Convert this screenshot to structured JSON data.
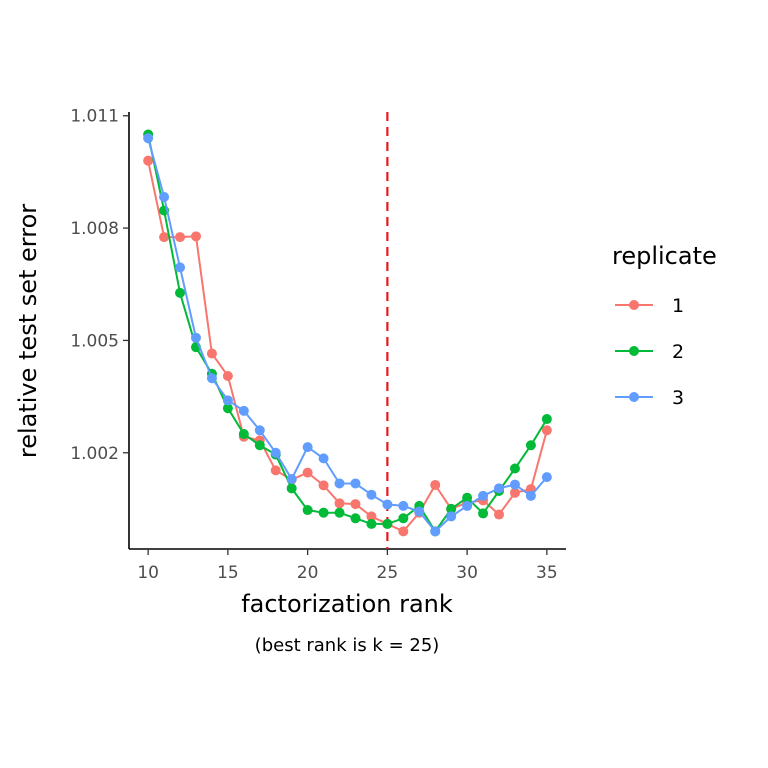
{
  "chart_data": {
    "type": "line",
    "title": "",
    "xlabel": "factorization rank",
    "ylabel": "relative test set error",
    "caption": "(best rank is k = 25)",
    "xlim": [
      8.8,
      36.2
    ],
    "ylim": [
      0.99943,
      1.0111
    ],
    "x_ticks": [
      10,
      15,
      20,
      25,
      30,
      35
    ],
    "x_tick_labels": [
      "10",
      "15",
      "20",
      "25",
      "30",
      "35"
    ],
    "y_ticks": [
      1.002,
      1.005,
      1.008,
      1.011
    ],
    "y_tick_labels": [
      "1.002",
      "1.005",
      "1.008",
      "1.011"
    ],
    "grid": false,
    "legend": {
      "title": "replicate",
      "position": "right"
    },
    "reference_line": {
      "x": 25,
      "color": "#E41A1C",
      "style": "dashed"
    },
    "x": [
      10,
      11,
      12,
      13,
      14,
      15,
      16,
      17,
      18,
      19,
      20,
      21,
      22,
      23,
      24,
      25,
      26,
      27,
      28,
      29,
      30,
      31,
      32,
      33,
      34,
      35
    ],
    "series": [
      {
        "name": "1",
        "color": "#F8766D",
        "values": [
          1.0098,
          1.00776,
          1.00776,
          1.00778,
          1.00465,
          1.00405,
          1.00243,
          1.00233,
          1.00153,
          1.00128,
          1.00147,
          1.00113,
          1.00065,
          1.00063,
          1.0003,
          1.0001,
          0.9999,
          1.0004,
          1.00114,
          1.0005,
          1.00067,
          1.00073,
          1.00035,
          1.00093,
          1.00103,
          1.0026
        ]
      },
      {
        "name": "2",
        "color": "#00BA38",
        "values": [
          1.0105,
          1.00847,
          1.00627,
          1.00482,
          1.00411,
          1.00319,
          1.0025,
          1.0022,
          1.00195,
          1.00105,
          1.00047,
          1.0004,
          1.0004,
          1.00025,
          1.0001,
          1.0001,
          1.00025,
          1.00058,
          0.9999,
          1.0005,
          1.0008,
          1.00038,
          1.00098,
          1.00158,
          1.0022,
          1.0029
        ]
      },
      {
        "name": "3",
        "color": "#619CFF",
        "values": [
          1.0104,
          1.00883,
          1.00695,
          1.00507,
          1.00399,
          1.0034,
          1.00312,
          1.0026,
          1.002,
          1.0013,
          1.00215,
          1.00185,
          1.00118,
          1.00118,
          1.00088,
          1.00062,
          1.00058,
          1.00043,
          0.9999,
          1.0003,
          1.00058,
          1.00085,
          1.00105,
          1.00115,
          1.00085,
          1.00135
        ]
      }
    ]
  }
}
